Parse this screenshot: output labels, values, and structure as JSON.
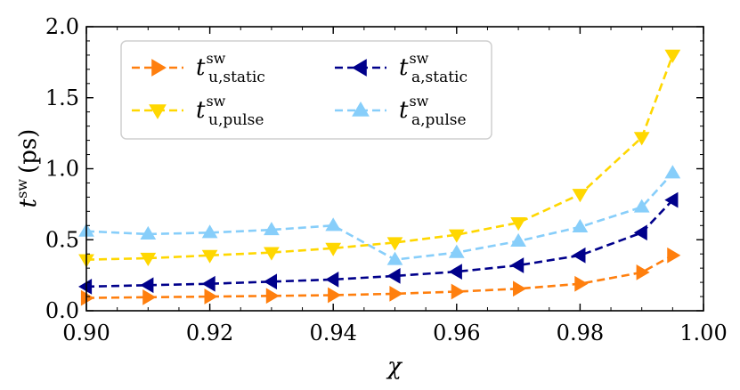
{
  "chart_data": {
    "type": "line",
    "title": "",
    "xlabel": "χ",
    "ylabel": "t^sw (ps)",
    "ylabel_parts": {
      "base": "t",
      "sup": "sw",
      "unit": "(ps)"
    },
    "xlim": [
      0.9,
      1.0
    ],
    "ylim": [
      0.0,
      2.0
    ],
    "x_ticks": [
      0.9,
      0.92,
      0.94,
      0.96,
      0.98,
      1.0
    ],
    "x_tick_labels": [
      "0.90",
      "0.92",
      "0.94",
      "0.96",
      "0.98",
      "1.00"
    ],
    "y_ticks": [
      0.0,
      0.5,
      1.0,
      1.5,
      2.0
    ],
    "y_tick_labels": [
      "0.0",
      "0.5",
      "1.0",
      "1.5",
      "2.0"
    ],
    "x": [
      0.9,
      0.91,
      0.92,
      0.93,
      0.94,
      0.95,
      0.96,
      0.97,
      0.98,
      0.99,
      0.995
    ],
    "legend_position": "top-left",
    "series": [
      {
        "key": "u-static",
        "name": "t^sw_u,static",
        "legend_base": "t",
        "legend_sup": "sw",
        "legend_sub": "u,static",
        "color": "#ff7f0e",
        "marker": "triangle-right",
        "linestyle": "dashed",
        "values": [
          0.09,
          0.095,
          0.1,
          0.105,
          0.11,
          0.12,
          0.135,
          0.155,
          0.19,
          0.27,
          0.39
        ]
      },
      {
        "key": "a-static",
        "name": "t^sw_a,static",
        "legend_base": "t",
        "legend_sup": "sw",
        "legend_sub": "a,static",
        "color": "#00008b",
        "marker": "triangle-left",
        "linestyle": "dashed",
        "values": [
          0.17,
          0.18,
          0.19,
          0.205,
          0.22,
          0.245,
          0.275,
          0.32,
          0.39,
          0.55,
          0.78
        ]
      },
      {
        "key": "u-pulse",
        "name": "t^sw_u,pulse",
        "legend_base": "t",
        "legend_sup": "sw",
        "legend_sub": "u,pulse",
        "color": "#ffd700",
        "marker": "triangle-down",
        "linestyle": "dashed",
        "values": [
          0.36,
          0.37,
          0.39,
          0.41,
          0.44,
          0.48,
          0.535,
          0.62,
          0.82,
          1.22,
          1.8
        ]
      },
      {
        "key": "a-pulse",
        "name": "t^sw_a,pulse",
        "legend_base": "t",
        "legend_sup": "sw",
        "legend_sub": "a,pulse",
        "color": "#87cefa",
        "marker": "triangle-up",
        "linestyle": "dashed",
        "values": [
          0.56,
          0.54,
          0.55,
          0.57,
          0.6,
          0.36,
          0.41,
          0.49,
          0.59,
          0.73,
          0.97
        ]
      }
    ]
  }
}
